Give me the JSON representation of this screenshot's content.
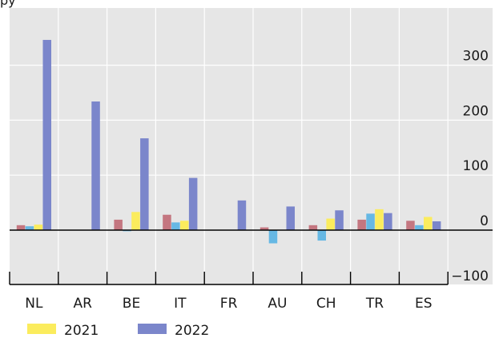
{
  "top_cut_text": "py",
  "chart_data": {
    "type": "bar",
    "title": "",
    "xlabel": "",
    "ylabel": "",
    "categories": [
      "NL",
      "AR",
      "BE",
      "IT",
      "FR",
      "AU",
      "CH",
      "TR",
      "ES"
    ],
    "series": [
      {
        "color": "#c47680",
        "values": [
          9,
          null,
          19,
          28,
          null,
          5,
          9,
          19,
          17
        ]
      },
      {
        "color": "#66b8e4",
        "values": [
          7,
          null,
          -2,
          14,
          null,
          -24,
          -19,
          30,
          9
        ]
      },
      {
        "name": "2021",
        "color": "#fbec5d",
        "values": [
          10,
          null,
          33,
          17,
          null,
          null,
          21,
          38,
          24
        ]
      },
      {
        "name": "2022",
        "color": "#7b86cb",
        "values": [
          346,
          234,
          167,
          95,
          54,
          43,
          36,
          31,
          16
        ]
      }
    ],
    "ylim": [
      -100,
      360
    ],
    "yticks": [
      -100,
      0,
      100,
      200,
      300
    ],
    "ytick_labels": [
      "−100",
      "0",
      "100",
      "200",
      "300"
    ],
    "y_axis_side": "right",
    "grid": true,
    "background": "#e6e6e6",
    "legend": {
      "position": "bottom-left",
      "entries": [
        "2021",
        "2022"
      ]
    }
  }
}
